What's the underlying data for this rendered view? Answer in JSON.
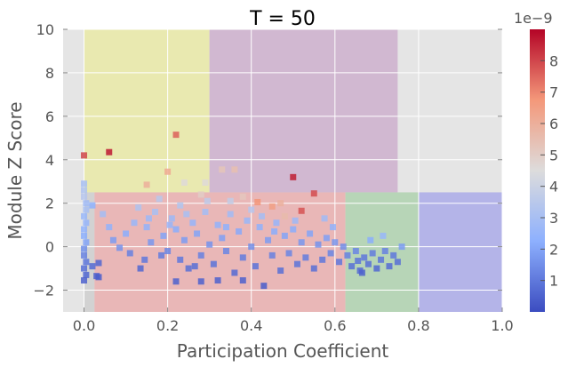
{
  "chart_data": {
    "type": "scatter",
    "title": "T = 50",
    "xlabel": "Participation Coefficient",
    "ylabel": "Module Z Score",
    "xlim": [
      -0.05,
      1.0
    ],
    "ylim": [
      -3,
      10
    ],
    "xticks": [
      0.0,
      0.2,
      0.4,
      0.6,
      0.8,
      1.0
    ],
    "xtick_labels": [
      "0.0",
      "0.2",
      "0.4",
      "0.6",
      "0.8",
      "1.0"
    ],
    "yticks": [
      -2,
      0,
      2,
      4,
      6,
      8,
      10
    ],
    "ytick_labels": [
      "−2",
      "0",
      "2",
      "4",
      "6",
      "8",
      "10"
    ],
    "grid": true,
    "background_color": "#e5e5e5",
    "regions": [
      {
        "x": [
          0.0,
          0.3
        ],
        "y": [
          2.5,
          10
        ],
        "color": "#e9e9b0"
      },
      {
        "x": [
          0.3,
          0.75
        ],
        "y": [
          2.5,
          10
        ],
        "color": "#d1b8d1"
      },
      {
        "x": [
          0.0,
          0.025
        ],
        "y": [
          -3,
          2.5
        ],
        "color": "#d2d2d2"
      },
      {
        "x": [
          0.025,
          0.625
        ],
        "y": [
          -3,
          2.5
        ],
        "color": "#e9b7b7"
      },
      {
        "x": [
          0.625,
          0.8
        ],
        "y": [
          -3,
          2.5
        ],
        "color": "#b7d5b7"
      },
      {
        "x": [
          0.8,
          1.0
        ],
        "y": [
          -3,
          2.5
        ],
        "color": "#b4b4e8"
      }
    ],
    "colorbar": {
      "colormap": "coolwarm",
      "range": [
        0,
        9
      ],
      "ticks": [
        1,
        2,
        3,
        4,
        5,
        6,
        7,
        8
      ],
      "tick_labels": [
        "1",
        "2",
        "3",
        "4",
        "5",
        "6",
        "7",
        "8"
      ],
      "offset_label": "1e−9"
    },
    "points": [
      {
        "x": 0.0,
        "y": 4.2,
        "c": 8.0
      },
      {
        "x": 0.06,
        "y": 4.35,
        "c": 8.7
      },
      {
        "x": 0.22,
        "y": 5.15,
        "c": 7.6
      },
      {
        "x": 0.5,
        "y": 3.2,
        "c": 8.6
      },
      {
        "x": 0.55,
        "y": 2.45,
        "c": 7.9
      },
      {
        "x": 0.52,
        "y": 1.65,
        "c": 7.8
      },
      {
        "x": 0.415,
        "y": 2.05,
        "c": 6.8
      },
      {
        "x": 0.36,
        "y": 3.55,
        "c": 5.5
      },
      {
        "x": 0.33,
        "y": 3.55,
        "c": 5.3
      },
      {
        "x": 0.2,
        "y": 3.45,
        "c": 6.2
      },
      {
        "x": 0.15,
        "y": 2.85,
        "c": 6.0
      },
      {
        "x": 0.24,
        "y": 2.95,
        "c": 4.6
      },
      {
        "x": 0.29,
        "y": 2.95,
        "c": 4.6
      },
      {
        "x": 0.45,
        "y": 1.85,
        "c": 6.5
      },
      {
        "x": 0.47,
        "y": 2.0,
        "c": 5.9
      },
      {
        "x": 0.38,
        "y": 2.3,
        "c": 5.2
      },
      {
        "x": 0.28,
        "y": 2.4,
        "c": 5.0
      },
      {
        "x": 0.48,
        "y": 1.4,
        "c": 5.6
      },
      {
        "x": 0.0,
        "y": 2.9,
        "c": 3.0
      },
      {
        "x": 0.0,
        "y": 2.6,
        "c": 3.2
      },
      {
        "x": 0.0,
        "y": 2.3,
        "c": 3.4
      },
      {
        "x": 0.005,
        "y": 2.0,
        "c": 2.8
      },
      {
        "x": 0.005,
        "y": 1.7,
        "c": 3.0
      },
      {
        "x": 0.0,
        "y": 1.4,
        "c": 2.6
      },
      {
        "x": 0.005,
        "y": 1.1,
        "c": 2.5
      },
      {
        "x": 0.0,
        "y": 0.8,
        "c": 2.4
      },
      {
        "x": 0.0,
        "y": 0.5,
        "c": 2.2
      },
      {
        "x": 0.005,
        "y": 0.2,
        "c": 2.0
      },
      {
        "x": 0.0,
        "y": -0.1,
        "c": 1.5
      },
      {
        "x": 0.0,
        "y": -0.4,
        "c": 1.2
      },
      {
        "x": 0.005,
        "y": -0.7,
        "c": 1.0
      },
      {
        "x": 0.0,
        "y": -1.0,
        "c": 0.8
      },
      {
        "x": 0.005,
        "y": -1.3,
        "c": 0.6
      },
      {
        "x": 0.0,
        "y": -1.55,
        "c": 0.5
      },
      {
        "x": 0.02,
        "y": -0.9,
        "c": 0.7
      },
      {
        "x": 0.03,
        "y": -1.35,
        "c": 0.5
      },
      {
        "x": 0.035,
        "y": -0.75,
        "c": 0.6
      },
      {
        "x": 0.02,
        "y": 1.9,
        "c": 2.3
      },
      {
        "x": 0.035,
        "y": -1.4,
        "c": 0.4
      },
      {
        "x": 0.07,
        "y": 0.3,
        "c": 1.8
      },
      {
        "x": 0.1,
        "y": 0.6,
        "c": 2.2
      },
      {
        "x": 0.12,
        "y": 1.1,
        "c": 2.6
      },
      {
        "x": 0.13,
        "y": 1.8,
        "c": 3.2
      },
      {
        "x": 0.15,
        "y": 0.9,
        "c": 2.4
      },
      {
        "x": 0.16,
        "y": 0.2,
        "c": 1.7
      },
      {
        "x": 0.17,
        "y": 1.6,
        "c": 3.0
      },
      {
        "x": 0.18,
        "y": 2.2,
        "c": 3.5
      },
      {
        "x": 0.19,
        "y": 0.5,
        "c": 2.0
      },
      {
        "x": 0.2,
        "y": -0.2,
        "c": 1.3
      },
      {
        "x": 0.21,
        "y": 1.3,
        "c": 2.7
      },
      {
        "x": 0.22,
        "y": 0.8,
        "c": 2.2
      },
      {
        "x": 0.23,
        "y": -0.6,
        "c": 1.0
      },
      {
        "x": 0.23,
        "y": 1.9,
        "c": 3.3
      },
      {
        "x": 0.24,
        "y": 0.3,
        "c": 1.8
      },
      {
        "x": 0.25,
        "y": -1.0,
        "c": 0.8
      },
      {
        "x": 0.26,
        "y": 1.1,
        "c": 2.5
      },
      {
        "x": 0.27,
        "y": 0.6,
        "c": 2.0
      },
      {
        "x": 0.28,
        "y": -0.4,
        "c": 1.2
      },
      {
        "x": 0.29,
        "y": 1.6,
        "c": 2.9
      },
      {
        "x": 0.3,
        "y": 0.1,
        "c": 1.6
      },
      {
        "x": 0.31,
        "y": -0.8,
        "c": 0.9
      },
      {
        "x": 0.32,
        "y": 1.0,
        "c": 2.4
      },
      {
        "x": 0.33,
        "y": 0.4,
        "c": 1.9
      },
      {
        "x": 0.34,
        "y": -0.2,
        "c": 1.3
      },
      {
        "x": 0.35,
        "y": 1.5,
        "c": 2.8
      },
      {
        "x": 0.36,
        "y": -1.2,
        "c": 0.7
      },
      {
        "x": 0.37,
        "y": 0.7,
        "c": 2.1
      },
      {
        "x": 0.38,
        "y": -0.5,
        "c": 1.1
      },
      {
        "x": 0.39,
        "y": 1.2,
        "c": 2.6
      },
      {
        "x": 0.4,
        "y": 0.0,
        "c": 1.5
      },
      {
        "x": 0.41,
        "y": -0.9,
        "c": 0.9
      },
      {
        "x": 0.42,
        "y": 0.9,
        "c": 2.3
      },
      {
        "x": 0.43,
        "y": -1.8,
        "c": 0.4
      },
      {
        "x": 0.44,
        "y": 0.3,
        "c": 1.8
      },
      {
        "x": 0.45,
        "y": -0.4,
        "c": 1.2
      },
      {
        "x": 0.46,
        "y": 1.1,
        "c": 2.5
      },
      {
        "x": 0.47,
        "y": -1.1,
        "c": 0.8
      },
      {
        "x": 0.48,
        "y": 0.5,
        "c": 2.0
      },
      {
        "x": 0.49,
        "y": -0.3,
        "c": 1.3
      },
      {
        "x": 0.5,
        "y": 0.8,
        "c": 2.2
      },
      {
        "x": 0.51,
        "y": -0.8,
        "c": 0.9
      },
      {
        "x": 0.52,
        "y": 0.2,
        "c": 1.7
      },
      {
        "x": 0.53,
        "y": -0.5,
        "c": 1.1
      },
      {
        "x": 0.54,
        "y": 0.6,
        "c": 2.0
      },
      {
        "x": 0.55,
        "y": -1.0,
        "c": 0.8
      },
      {
        "x": 0.56,
        "y": 0.1,
        "c": 1.6
      },
      {
        "x": 0.57,
        "y": -0.6,
        "c": 1.0
      },
      {
        "x": 0.58,
        "y": 0.4,
        "c": 1.9
      },
      {
        "x": 0.59,
        "y": -0.3,
        "c": 1.3
      },
      {
        "x": 0.6,
        "y": 0.2,
        "c": 1.7
      },
      {
        "x": 0.61,
        "y": -0.7,
        "c": 1.0
      },
      {
        "x": 0.62,
        "y": 0.0,
        "c": 1.5
      },
      {
        "x": 0.63,
        "y": -0.4,
        "c": 1.2
      },
      {
        "x": 0.64,
        "y": -0.9,
        "c": 0.8
      },
      {
        "x": 0.65,
        "y": -0.2,
        "c": 1.3
      },
      {
        "x": 0.66,
        "y": -1.1,
        "c": 0.7
      },
      {
        "x": 0.67,
        "y": -0.5,
        "c": 1.0
      },
      {
        "x": 0.68,
        "y": -0.8,
        "c": 0.8
      },
      {
        "x": 0.69,
        "y": -0.3,
        "c": 1.1
      },
      {
        "x": 0.7,
        "y": -1.0,
        "c": 0.6
      },
      {
        "x": 0.71,
        "y": -0.6,
        "c": 0.9
      },
      {
        "x": 0.72,
        "y": -0.2,
        "c": 1.2
      },
      {
        "x": 0.73,
        "y": -0.9,
        "c": 0.7
      },
      {
        "x": 0.74,
        "y": -0.4,
        "c": 1.0
      },
      {
        "x": 0.75,
        "y": -0.7,
        "c": 0.8
      },
      {
        "x": 0.76,
        "y": 0.0,
        "c": 1.8
      },
      {
        "x": 0.665,
        "y": -1.2,
        "c": 0.5
      },
      {
        "x": 0.685,
        "y": 0.3,
        "c": 2.2
      },
      {
        "x": 0.715,
        "y": 0.5,
        "c": 2.6
      },
      {
        "x": 0.655,
        "y": -0.65,
        "c": 0.9
      },
      {
        "x": 0.28,
        "y": -1.6,
        "c": 0.5
      },
      {
        "x": 0.32,
        "y": -1.55,
        "c": 0.5
      },
      {
        "x": 0.38,
        "y": -1.55,
        "c": 0.5
      },
      {
        "x": 0.22,
        "y": -1.6,
        "c": 0.5
      },
      {
        "x": 0.135,
        "y": -1.0,
        "c": 0.6
      },
      {
        "x": 0.11,
        "y": -0.3,
        "c": 1.2
      },
      {
        "x": 0.085,
        "y": -0.05,
        "c": 1.6
      },
      {
        "x": 0.06,
        "y": 0.9,
        "c": 2.4
      },
      {
        "x": 0.045,
        "y": 1.5,
        "c": 2.9
      },
      {
        "x": 0.185,
        "y": -0.4,
        "c": 1.1
      },
      {
        "x": 0.265,
        "y": -0.9,
        "c": 0.8
      },
      {
        "x": 0.295,
        "y": 2.1,
        "c": 3.6
      },
      {
        "x": 0.35,
        "y": 2.1,
        "c": 3.7
      },
      {
        "x": 0.4,
        "y": 1.7,
        "c": 3.4
      },
      {
        "x": 0.34,
        "y": 0.9,
        "c": 2.3
      },
      {
        "x": 0.425,
        "y": 1.4,
        "c": 2.9
      },
      {
        "x": 0.455,
        "y": 0.7,
        "c": 2.2
      },
      {
        "x": 0.575,
        "y": 1.3,
        "c": 2.8
      },
      {
        "x": 0.595,
        "y": 0.9,
        "c": 2.4
      },
      {
        "x": 0.505,
        "y": 1.2,
        "c": 2.7
      },
      {
        "x": 0.245,
        "y": 1.5,
        "c": 3.0
      },
      {
        "x": 0.205,
        "y": 1.0,
        "c": 2.5
      },
      {
        "x": 0.155,
        "y": 1.3,
        "c": 2.7
      },
      {
        "x": 0.145,
        "y": -0.6,
        "c": 1.0
      }
    ]
  }
}
